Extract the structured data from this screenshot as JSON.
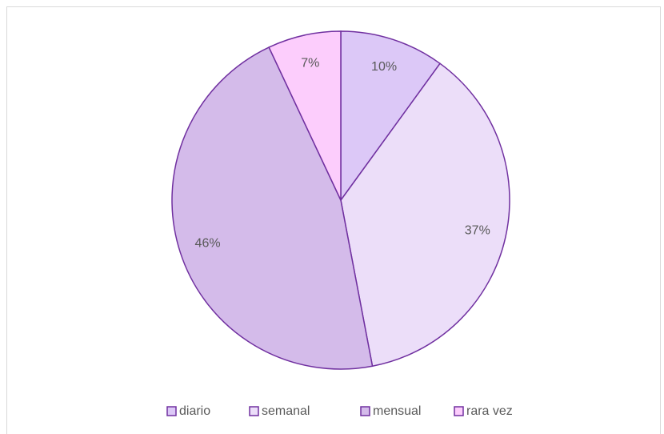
{
  "chart_data": {
    "type": "pie",
    "categories": [
      "diario",
      "semanal",
      "mensual",
      "rara vez"
    ],
    "values": [
      10,
      37,
      46,
      7
    ],
    "value_labels": [
      "10%",
      "37%",
      "46%",
      "7%"
    ],
    "colors": [
      "#dcc8f7",
      "#ecdef9",
      "#d4bbea",
      "#fccdfc"
    ],
    "stroke": "#7030a0",
    "legend": "bottom"
  }
}
